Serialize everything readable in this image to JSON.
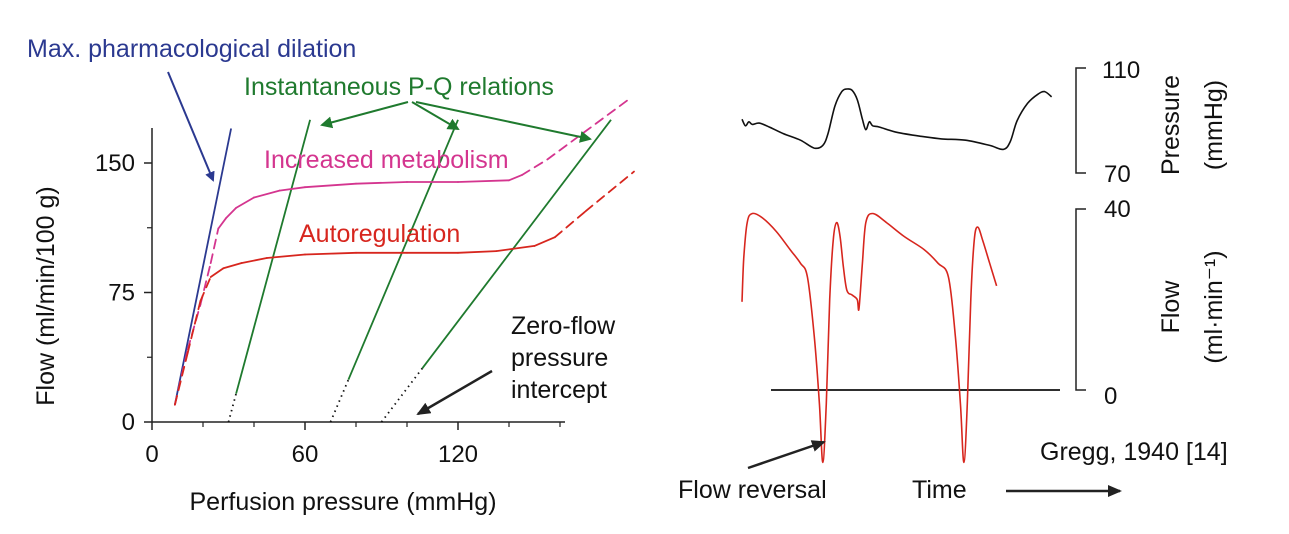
{
  "chart_data": [
    {
      "type": "line",
      "xlabel": "Perfusion pressure (mmHg)",
      "ylabel": "Flow (ml/min/100 g)",
      "xlim": [
        0,
        160
      ],
      "ylim": [
        0,
        170
      ],
      "xticks": [
        0,
        60,
        120
      ],
      "yticks": [
        0,
        75,
        150
      ],
      "grid": false,
      "colors": {
        "max_dilation": "#2b3990",
        "metabolism": "#d4358f",
        "autoregulation": "#d7261e",
        "instantaneous": "#1f7a2e",
        "axis": "#222222"
      },
      "series": [
        {
          "name": "Max. pharmacological dilation",
          "points": [
            [
              9,
              10
            ],
            [
              31,
              170
            ]
          ]
        },
        {
          "name": "Increased metabolism",
          "points": [
            [
              9,
              10
            ],
            [
              14,
              42
            ],
            [
              19,
              68
            ],
            [
              23,
              92
            ],
            [
              26,
              112
            ],
            [
              29,
              118
            ],
            [
              33,
              124
            ],
            [
              40,
              130
            ],
            [
              50,
              134
            ],
            [
              60,
              136
            ],
            [
              80,
              138
            ],
            [
              100,
              139
            ],
            [
              120,
              139
            ],
            [
              140,
              140
            ],
            [
              145,
              143
            ],
            [
              155,
              152
            ],
            [
              188,
              188
            ]
          ],
          "dashed_ranges": [
            [
              9,
              26
            ],
            [
              145,
              188
            ]
          ]
        },
        {
          "name": "Autoregulation",
          "points": [
            [
              9,
              10
            ],
            [
              14,
              40
            ],
            [
              19,
              70
            ],
            [
              23,
              84
            ],
            [
              28,
              89
            ],
            [
              35,
              92
            ],
            [
              45,
              95
            ],
            [
              60,
              97
            ],
            [
              80,
              98
            ],
            [
              100,
              98
            ],
            [
              120,
              98
            ],
            [
              135,
              99
            ],
            [
              150,
              102
            ],
            [
              158,
              107
            ],
            [
              170,
              122
            ],
            [
              189,
              145
            ]
          ],
          "dashed_ranges": [
            [
              9,
              26
            ],
            [
              158,
              189
            ]
          ]
        }
      ],
      "instantaneous_lines": [
        {
          "zero_flow_intercept": 30,
          "points": [
            [
              30,
              0
            ],
            [
              62,
              175
            ]
          ],
          "dotted_to": 33
        },
        {
          "zero_flow_intercept": 70,
          "points": [
            [
              70,
              0
            ],
            [
              120,
              175
            ]
          ],
          "dotted_to": 77
        },
        {
          "zero_flow_intercept": 90,
          "points": [
            [
              90,
              0
            ],
            [
              180,
              175
            ]
          ],
          "dotted_to": 106
        }
      ],
      "annotations": [
        "Max. pharmacological dilation",
        "Instantaneous P-Q relations",
        "Increased metabolism",
        "Autoregulation",
        "Zero-flow",
        "pressure",
        "intercept"
      ]
    },
    {
      "type": "line",
      "xlabel": "Time",
      "citation": "Gregg, 1940 [14]",
      "panels": [
        {
          "name": "Pressure",
          "ylabel_line1": "Pressure",
          "ylabel_line2": "(mmHg)",
          "yticks": [
            70,
            110
          ],
          "ylim": [
            70,
            110
          ],
          "color": "#111111",
          "points": [
            [
              0,
              90.5
            ],
            [
              0.01,
              88
            ],
            [
              0.02,
              89.5
            ],
            [
              0.03,
              88.5
            ],
            [
              0.05,
              89
            ],
            [
              0.08,
              87.5
            ],
            [
              0.12,
              85
            ],
            [
              0.17,
              82.5
            ],
            [
              0.21,
              79.5
            ],
            [
              0.235,
              80.5
            ],
            [
              0.25,
              85
            ],
            [
              0.27,
              95.5
            ],
            [
              0.29,
              101
            ],
            [
              0.305,
              102
            ],
            [
              0.32,
              101.5
            ],
            [
              0.335,
              98
            ],
            [
              0.35,
              90.5
            ],
            [
              0.36,
              86.5
            ],
            [
              0.37,
              89.5
            ],
            [
              0.38,
              88
            ],
            [
              0.4,
              87.5
            ],
            [
              0.45,
              85.5
            ],
            [
              0.52,
              84
            ],
            [
              0.58,
              83
            ],
            [
              0.65,
              82.5
            ],
            [
              0.72,
              80.5
            ],
            [
              0.76,
              79
            ],
            [
              0.78,
              82
            ],
            [
              0.8,
              90
            ],
            [
              0.83,
              96.5
            ],
            [
              0.86,
              100
            ],
            [
              0.88,
              101
            ],
            [
              0.9,
              99
            ]
          ]
        },
        {
          "name": "Flow",
          "ylabel_line1": "Flow",
          "ylabel_line2": "(ml·min⁻¹)",
          "yticks": [
            0,
            40
          ],
          "ylim": [
            -17,
            41
          ],
          "color": "#d7261e",
          "points": [
            [
              0,
              19.5
            ],
            [
              0.005,
              29
            ],
            [
              0.015,
              37
            ],
            [
              0.03,
              39
            ],
            [
              0.06,
              38
            ],
            [
              0.1,
              35
            ],
            [
              0.14,
              31
            ],
            [
              0.17,
              28
            ],
            [
              0.19,
              25
            ],
            [
              0.21,
              12
            ],
            [
              0.225,
              -3
            ],
            [
              0.235,
              -16
            ],
            [
              0.245,
              -3
            ],
            [
              0.255,
              20
            ],
            [
              0.265,
              33
            ],
            [
              0.275,
              37
            ],
            [
              0.285,
              34
            ],
            [
              0.295,
              27
            ],
            [
              0.305,
              22
            ],
            [
              0.32,
              21
            ],
            [
              0.335,
              20
            ],
            [
              0.34,
              18
            ],
            [
              0.35,
              28
            ],
            [
              0.36,
              37
            ],
            [
              0.38,
              39
            ],
            [
              0.42,
              37
            ],
            [
              0.47,
              34
            ],
            [
              0.53,
              31
            ],
            [
              0.57,
              28
            ],
            [
              0.6,
              25
            ],
            [
              0.62,
              12
            ],
            [
              0.635,
              -3
            ],
            [
              0.645,
              -16
            ],
            [
              0.655,
              -3
            ],
            [
              0.665,
              20
            ],
            [
              0.675,
              33
            ],
            [
              0.685,
              36
            ],
            [
              0.7,
              33
            ],
            [
              0.72,
              28
            ],
            [
              0.74,
              23
            ]
          ]
        }
      ],
      "annotations": [
        "Flow reversal"
      ]
    }
  ]
}
